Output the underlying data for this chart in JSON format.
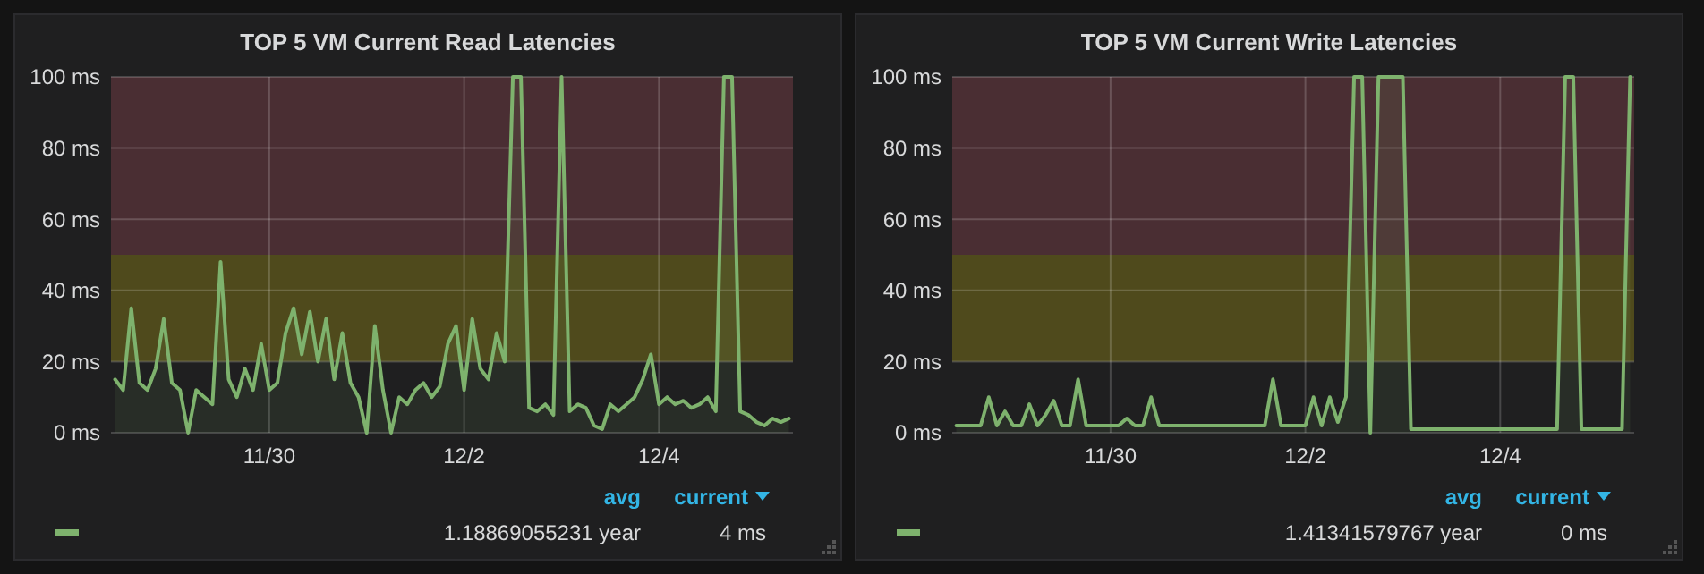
{
  "chart_data": [
    {
      "type": "area",
      "title": "TOP 5 VM Current Read Latencies",
      "xlim": [
        "--11-28T09:00",
        "--12-05T09:00"
      ],
      "xticks": [
        {
          "value": "--11-30",
          "label": "11/30"
        },
        {
          "value": "--12-02",
          "label": "12/2"
        },
        {
          "value": "--12-04",
          "label": "12/4"
        }
      ],
      "ylim": [
        0,
        100
      ],
      "yticks": [
        {
          "value": 0,
          "label": "0 ms"
        },
        {
          "value": 20,
          "label": "20 ms"
        },
        {
          "value": 40,
          "label": "40 ms"
        },
        {
          "value": 60,
          "label": "60 ms"
        },
        {
          "value": 80,
          "label": "80 ms"
        },
        {
          "value": 100,
          "label": "100 ms"
        }
      ],
      "grid": true,
      "bands": [
        {
          "axis": "y",
          "from": 20,
          "to": 50,
          "color": "#4f4a1c"
        },
        {
          "axis": "y",
          "from": 50,
          "to": 100,
          "color": "#4a2e33"
        }
      ],
      "annotations": [
        "avg",
        "current",
        "1.18869055231 year",
        "4 ms"
      ],
      "x": [
        "--11-28T10:00",
        "--11-28T12:00",
        "--11-28T14:00",
        "--11-28T16:00",
        "--11-28T18:00",
        "--11-28T20:00",
        "--11-28T22:00",
        "--11-29T00:00",
        "--11-29T02:00",
        "--11-29T04:00",
        "--11-29T06:00",
        "--11-29T08:00",
        "--11-29T10:00",
        "--11-29T12:00",
        "--11-29T14:00",
        "--11-29T16:00",
        "--11-29T18:00",
        "--11-29T20:00",
        "--11-29T22:00",
        "--11-30T00:00",
        "--11-30T02:00",
        "--11-30T04:00",
        "--11-30T06:00",
        "--11-30T08:00",
        "--11-30T10:00",
        "--11-30T12:00",
        "--11-30T14:00",
        "--11-30T16:00",
        "--11-30T18:00",
        "--11-30T20:00",
        "--11-30T22:00",
        "--12-01T00:00",
        "--12-01T02:00",
        "--12-01T04:00",
        "--12-01T06:00",
        "--12-01T08:00",
        "--12-01T10:00",
        "--12-01T12:00",
        "--12-01T14:00",
        "--12-01T16:00",
        "--12-01T18:00",
        "--12-01T20:00",
        "--12-01T22:00",
        "--12-02T00:00",
        "--12-02T02:00",
        "--12-02T04:00",
        "--12-02T06:00",
        "--12-02T08:00",
        "--12-02T10:00",
        "--12-02T12:00",
        "--12-02T14:00",
        "--12-02T16:00",
        "--12-02T18:00",
        "--12-02T20:00",
        "--12-02T22:00",
        "--12-03T00:00",
        "--12-03T02:00",
        "--12-03T04:00",
        "--12-03T06:00",
        "--12-03T08:00",
        "--12-03T10:00",
        "--12-03T12:00",
        "--12-03T14:00",
        "--12-03T16:00",
        "--12-03T18:00",
        "--12-03T20:00",
        "--12-03T22:00",
        "--12-04T00:00",
        "--12-04T02:00",
        "--12-04T04:00",
        "--12-04T06:00",
        "--12-04T08:00",
        "--12-04T10:00",
        "--12-04T12:00",
        "--12-04T14:00",
        "--12-04T16:00",
        "--12-04T18:00",
        "--12-04T20:00",
        "--12-04T22:00",
        "--12-05T00:00",
        "--12-05T02:00",
        "--12-05T04:00",
        "--12-05T06:00",
        "--12-05T08:00"
      ],
      "series": [
        {
          "color": "#7eb26d",
          "values": [
            15,
            12,
            35,
            14,
            12,
            18,
            32,
            14,
            12,
            0,
            12,
            10,
            8,
            48,
            15,
            10,
            18,
            12,
            25,
            12,
            14,
            28,
            35,
            22,
            34,
            20,
            32,
            15,
            28,
            14,
            10,
            0,
            30,
            12,
            0,
            10,
            8,
            12,
            14,
            10,
            13,
            25,
            30,
            12,
            32,
            18,
            15,
            28,
            20,
            100,
            100,
            7,
            6,
            8,
            5,
            100,
            6,
            8,
            7,
            2,
            1,
            8,
            6,
            8,
            10,
            15,
            22,
            8,
            10,
            8,
            9,
            7,
            8,
            10,
            6,
            100,
            100,
            6,
            5,
            3,
            2,
            4,
            3,
            4
          ]
        }
      ]
    },
    {
      "type": "area",
      "title": "TOP 5 VM Current Write Latencies",
      "xlim": [
        "--11-28T09:00",
        "--12-05T09:00"
      ],
      "xticks": [
        {
          "value": "--11-30",
          "label": "11/30"
        },
        {
          "value": "--12-02",
          "label": "12/2"
        },
        {
          "value": "--12-04",
          "label": "12/4"
        }
      ],
      "ylim": [
        0,
        100
      ],
      "yticks": [
        {
          "value": 0,
          "label": "0 ms"
        },
        {
          "value": 20,
          "label": "20 ms"
        },
        {
          "value": 40,
          "label": "40 ms"
        },
        {
          "value": 60,
          "label": "60 ms"
        },
        {
          "value": 80,
          "label": "80 ms"
        },
        {
          "value": 100,
          "label": "100 ms"
        }
      ],
      "grid": true,
      "bands": [
        {
          "axis": "y",
          "from": 20,
          "to": 50,
          "color": "#4f4a1c"
        },
        {
          "axis": "y",
          "from": 50,
          "to": 100,
          "color": "#4a2e33"
        }
      ],
      "annotations": [
        "avg",
        "current",
        "1.41341579767 year",
        "0 ms"
      ],
      "x": [
        "--11-28T10:00",
        "--11-28T12:00",
        "--11-28T14:00",
        "--11-28T16:00",
        "--11-28T18:00",
        "--11-28T20:00",
        "--11-28T22:00",
        "--11-29T00:00",
        "--11-29T02:00",
        "--11-29T04:00",
        "--11-29T06:00",
        "--11-29T08:00",
        "--11-29T10:00",
        "--11-29T12:00",
        "--11-29T14:00",
        "--11-29T16:00",
        "--11-29T18:00",
        "--11-29T20:00",
        "--11-29T22:00",
        "--11-30T00:00",
        "--11-30T02:00",
        "--11-30T04:00",
        "--11-30T06:00",
        "--11-30T08:00",
        "--11-30T10:00",
        "--11-30T12:00",
        "--11-30T14:00",
        "--11-30T16:00",
        "--11-30T18:00",
        "--11-30T20:00",
        "--11-30T22:00",
        "--12-01T00:00",
        "--12-01T02:00",
        "--12-01T04:00",
        "--12-01T06:00",
        "--12-01T08:00",
        "--12-01T10:00",
        "--12-01T12:00",
        "--12-01T14:00",
        "--12-01T16:00",
        "--12-01T18:00",
        "--12-01T20:00",
        "--12-01T22:00",
        "--12-02T00:00",
        "--12-02T02:00",
        "--12-02T04:00",
        "--12-02T06:00",
        "--12-02T08:00",
        "--12-02T10:00",
        "--12-02T12:00",
        "--12-02T14:00",
        "--12-02T16:00",
        "--12-02T18:00",
        "--12-02T20:00",
        "--12-02T22:00",
        "--12-03T00:00",
        "--12-03T02:00",
        "--12-03T04:00",
        "--12-03T06:00",
        "--12-03T08:00",
        "--12-03T10:00",
        "--12-03T12:00",
        "--12-03T14:00",
        "--12-03T16:00",
        "--12-03T18:00",
        "--12-03T20:00",
        "--12-03T22:00",
        "--12-04T00:00",
        "--12-04T02:00",
        "--12-04T04:00",
        "--12-04T06:00",
        "--12-04T08:00",
        "--12-04T10:00",
        "--12-04T12:00",
        "--12-04T14:00",
        "--12-04T16:00",
        "--12-04T18:00",
        "--12-04T20:00",
        "--12-04T22:00",
        "--12-05T00:00",
        "--12-05T02:00",
        "--12-05T04:00",
        "--12-05T06:00",
        "--12-05T08:00"
      ],
      "series": [
        {
          "color": "#7eb26d",
          "values": [
            2,
            2,
            2,
            2,
            10,
            2,
            6,
            2,
            2,
            8,
            2,
            5,
            9,
            2,
            2,
            15,
            2,
            2,
            2,
            2,
            2,
            4,
            2,
            2,
            10,
            2,
            2,
            2,
            2,
            2,
            2,
            2,
            2,
            2,
            2,
            2,
            2,
            2,
            2,
            15,
            2,
            2,
            2,
            2,
            10,
            2,
            10,
            3,
            10,
            100,
            100,
            0,
            100,
            100,
            100,
            100,
            1,
            1,
            1,
            1,
            1,
            1,
            1,
            1,
            1,
            1,
            1,
            1,
            1,
            1,
            1,
            1,
            1,
            1,
            1,
            100,
            100,
            1,
            1,
            1,
            1,
            1,
            1,
            100
          ]
        }
      ]
    }
  ]
}
